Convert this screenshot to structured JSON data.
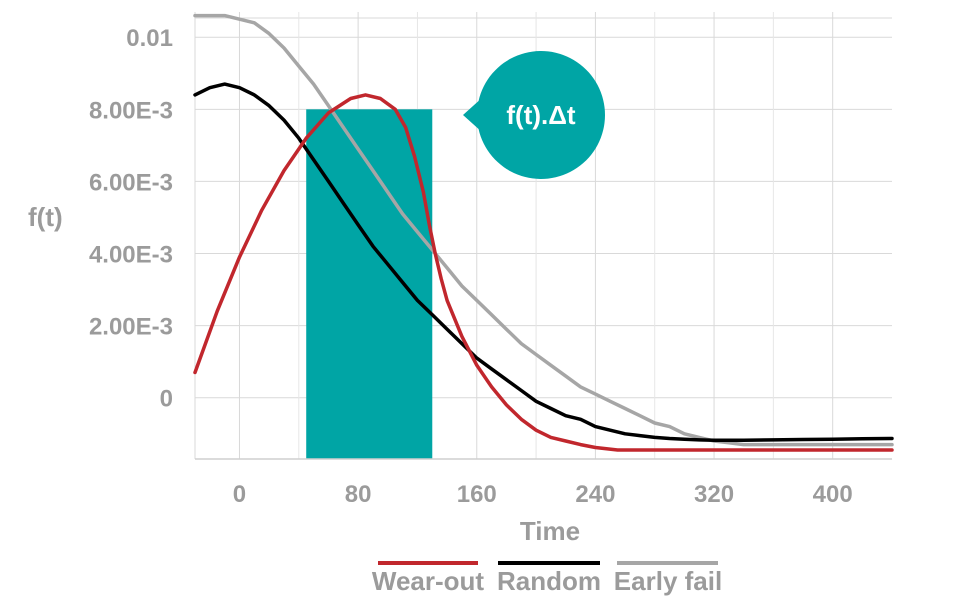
{
  "chart_data": {
    "type": "line",
    "xlabel": "Time",
    "ylabel": "f(t)",
    "xlim": [
      -30,
      440
    ],
    "ylim": [
      -0.0017,
      0.0107
    ],
    "x_ticks": [
      0,
      80,
      160,
      240,
      320,
      400
    ],
    "x_tick_labels": [
      "0",
      "80",
      "160",
      "240",
      "320",
      "400"
    ],
    "y_ticks": [
      0,
      0.002,
      0.004,
      0.006,
      0.008,
      0.01
    ],
    "y_tick_labels": [
      "0",
      "2.00E-3",
      "4.00E-3",
      "6.00E-3",
      "8.00E-3",
      "0.01"
    ],
    "grid": true,
    "legend_position": "bottom",
    "highlight_bar": {
      "x_start": 45,
      "x_end": 130,
      "y": 0.008,
      "color": "#00a5a5"
    },
    "callout": {
      "text": "f(t).Δt",
      "color": "#00a5a5"
    },
    "series": [
      {
        "name": "Wear-out",
        "color": "#c1272d",
        "x": [
          -30,
          -15,
          0,
          15,
          30,
          45,
          60,
          75,
          85,
          95,
          105,
          112,
          118,
          124,
          128,
          132,
          136,
          140,
          145,
          150,
          160,
          170,
          180,
          190,
          200,
          210,
          220,
          230,
          240,
          255,
          280,
          320,
          360,
          400,
          440
        ],
        "y": [
          0.0007,
          0.0024,
          0.0039,
          0.0052,
          0.0063,
          0.0072,
          0.0079,
          0.0083,
          0.0084,
          0.0083,
          0.008,
          0.0075,
          0.0067,
          0.0057,
          0.0048,
          0.004,
          0.0033,
          0.0027,
          0.0022,
          0.0017,
          0.0009,
          0.0003,
          -0.0002,
          -0.0006,
          -0.0009,
          -0.0011,
          -0.0012,
          -0.0013,
          -0.00138,
          -0.00145,
          -0.00145,
          -0.00145,
          -0.00145,
          -0.00145,
          -0.00145
        ]
      },
      {
        "name": "Random",
        "color": "#000000",
        "x": [
          -30,
          -20,
          -10,
          0,
          10,
          20,
          30,
          40,
          50,
          60,
          70,
          80,
          90,
          100,
          110,
          120,
          130,
          140,
          150,
          160,
          170,
          180,
          190,
          200,
          210,
          220,
          230,
          240,
          250,
          260,
          270,
          280,
          290,
          300,
          310,
          320,
          340,
          360,
          380,
          400,
          420,
          440
        ],
        "y": [
          0.0084,
          0.0086,
          0.0087,
          0.0086,
          0.0084,
          0.0081,
          0.0077,
          0.0072,
          0.0066,
          0.006,
          0.0054,
          0.0048,
          0.0042,
          0.0037,
          0.0032,
          0.0027,
          0.0023,
          0.0019,
          0.0015,
          0.0011,
          0.0008,
          0.0005,
          0.0002,
          -0.0001,
          -0.0003,
          -0.0005,
          -0.0006,
          -0.0008,
          -0.0009,
          -0.001,
          -0.00105,
          -0.0011,
          -0.00113,
          -0.00115,
          -0.00117,
          -0.00118,
          -0.00118,
          -0.00117,
          -0.00116,
          -0.00115,
          -0.00114,
          -0.00113
        ]
      },
      {
        "name": "Early fail",
        "color": "#a6a6a6",
        "x": [
          -30,
          -20,
          -10,
          0,
          10,
          20,
          30,
          40,
          50,
          60,
          70,
          80,
          90,
          100,
          110,
          120,
          130,
          140,
          150,
          160,
          170,
          180,
          190,
          200,
          210,
          220,
          230,
          240,
          250,
          260,
          270,
          280,
          290,
          300,
          310,
          320,
          330,
          340,
          360,
          380,
          400,
          420,
          440
        ],
        "y": [
          0.0106,
          0.0106,
          0.0106,
          0.0105,
          0.0104,
          0.0101,
          0.0097,
          0.0092,
          0.0087,
          0.0081,
          0.0075,
          0.0069,
          0.0063,
          0.0057,
          0.0051,
          0.0046,
          0.0041,
          0.0036,
          0.0031,
          0.0027,
          0.0023,
          0.0019,
          0.0015,
          0.0012,
          0.0009,
          0.0006,
          0.0003,
          0.0001,
          -0.0001,
          -0.0003,
          -0.0005,
          -0.0007,
          -0.0008,
          -0.001,
          -0.0011,
          -0.0012,
          -0.00125,
          -0.0013,
          -0.0013,
          -0.0013,
          -0.0013,
          -0.0013,
          -0.0013
        ]
      }
    ]
  }
}
